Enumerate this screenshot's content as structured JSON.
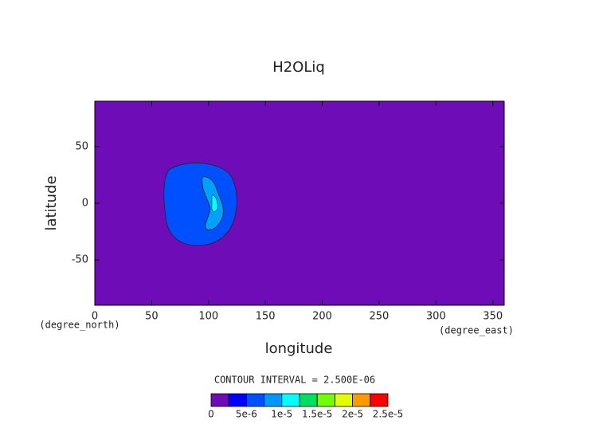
{
  "chart_data": {
    "type": "contour",
    "title": "H2OLiq",
    "x_label": "longitude",
    "y_label": "latitude",
    "x_unit": "(degree_east)",
    "y_unit": "(degree_north)",
    "annotation": "CONTOUR INTERVAL = 2.500E-06",
    "background_color": "#6e0cb8",
    "xlim": [
      0,
      360
    ],
    "ylim": [
      -90,
      90
    ],
    "xticks": [
      0,
      50,
      100,
      150,
      200,
      250,
      300,
      350
    ],
    "yticks": [
      -50,
      0,
      50
    ],
    "colorbar": {
      "levels": [
        0,
        2.5e-06,
        5e-06,
        7.5e-06,
        1e-05,
        1.25e-05,
        1.5e-05,
        1.75e-05,
        2e-05,
        2.25e-05,
        2.5e-05
      ],
      "colors": [
        "#6e0cb8",
        "#0000ff",
        "#0050ff",
        "#0096ff",
        "#00ffff",
        "#00e060",
        "#70ff00",
        "#e0ff00",
        "#ff9900",
        "#ff0000"
      ],
      "ticks": [
        0,
        {
          "value": 5e-06,
          "label": "5e-6"
        },
        {
          "value": 1e-05,
          "label": "1e-5"
        },
        {
          "value": 1.5e-05,
          "label": "1.5e-5"
        },
        {
          "value": 2e-05,
          "label": "2e-5"
        },
        {
          "value": 2.5e-05,
          "label": "2.5e-5"
        }
      ]
    }
  }
}
